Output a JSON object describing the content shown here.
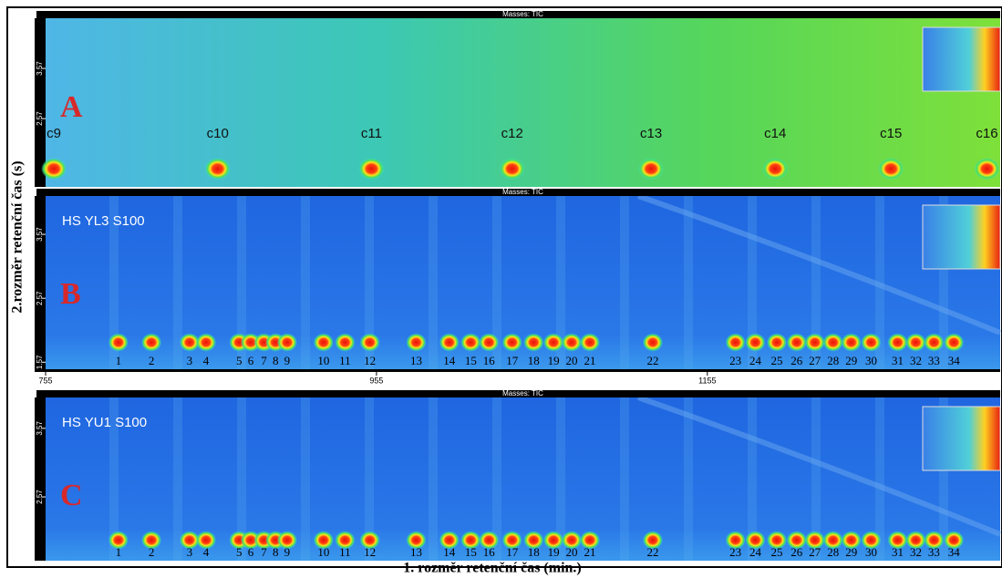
{
  "axes": {
    "x_label": "1. rozměr retenční čas (min.)",
    "y_label": "2.rozměr retenční čas (s)",
    "xlim": [
      755,
      1332
    ],
    "xticks": [
      755,
      955,
      1155
    ]
  },
  "panels": [
    {
      "title": "Masses: TIC",
      "letter": "A",
      "ylim": [
        1.21,
        4.57
      ],
      "yticks": [
        2.57,
        3.57
      ],
      "peak_rt2": 1.57,
      "peaks": [
        {
          "label": "c9",
          "rt1": 760
        },
        {
          "label": "c10",
          "rt1": 859
        },
        {
          "label": "c11",
          "rt1": 952
        },
        {
          "label": "c12",
          "rt1": 1037
        },
        {
          "label": "c13",
          "rt1": 1121
        },
        {
          "label": "c14",
          "rt1": 1196
        },
        {
          "label": "c15",
          "rt1": 1266
        },
        {
          "label": "c16",
          "rt1": 1324
        }
      ]
    },
    {
      "title": "Masses: TIC",
      "letter": "B",
      "sample": "HS YL3 S100",
      "ylim": [
        1.46,
        4.17
      ],
      "yticks": [
        1.57,
        2.57,
        3.57
      ],
      "peak_rt2": 1.88,
      "peaks": [
        {
          "label": "1",
          "rt1": 799
        },
        {
          "label": "2",
          "rt1": 819
        },
        {
          "label": "3",
          "rt1": 842
        },
        {
          "label": "4",
          "rt1": 852
        },
        {
          "label": "5",
          "rt1": 872
        },
        {
          "label": "6",
          "rt1": 879
        },
        {
          "label": "7",
          "rt1": 887
        },
        {
          "label": "8",
          "rt1": 894
        },
        {
          "label": "9",
          "rt1": 901
        },
        {
          "label": "10",
          "rt1": 923
        },
        {
          "label": "11",
          "rt1": 936
        },
        {
          "label": "12",
          "rt1": 951
        },
        {
          "label": "13",
          "rt1": 979
        },
        {
          "label": "14",
          "rt1": 999
        },
        {
          "label": "15",
          "rt1": 1012
        },
        {
          "label": "16",
          "rt1": 1023
        },
        {
          "label": "17",
          "rt1": 1037
        },
        {
          "label": "18",
          "rt1": 1050
        },
        {
          "label": "19",
          "rt1": 1062
        },
        {
          "label": "20",
          "rt1": 1073
        },
        {
          "label": "21",
          "rt1": 1084
        },
        {
          "label": "22",
          "rt1": 1122
        },
        {
          "label": "23",
          "rt1": 1172
        },
        {
          "label": "24",
          "rt1": 1184
        },
        {
          "label": "25",
          "rt1": 1197
        },
        {
          "label": "26",
          "rt1": 1209
        },
        {
          "label": "27",
          "rt1": 1220
        },
        {
          "label": "28",
          "rt1": 1231
        },
        {
          "label": "29",
          "rt1": 1242
        },
        {
          "label": "30",
          "rt1": 1254
        },
        {
          "label": "31",
          "rt1": 1270
        },
        {
          "label": "32",
          "rt1": 1281
        },
        {
          "label": "33",
          "rt1": 1292
        },
        {
          "label": "34",
          "rt1": 1304
        }
      ]
    },
    {
      "title": "Masses: TIC",
      "letter": "C",
      "sample": "HS YU1 S100",
      "ylim": [
        1.64,
        4.02
      ],
      "yticks": [
        2.57,
        3.57
      ],
      "peak_rt2": 1.94,
      "peaks": [
        {
          "label": "1",
          "rt1": 799
        },
        {
          "label": "2",
          "rt1": 819
        },
        {
          "label": "3",
          "rt1": 842
        },
        {
          "label": "4",
          "rt1": 852
        },
        {
          "label": "5",
          "rt1": 872
        },
        {
          "label": "6",
          "rt1": 879
        },
        {
          "label": "7",
          "rt1": 887
        },
        {
          "label": "8",
          "rt1": 894
        },
        {
          "label": "9",
          "rt1": 901
        },
        {
          "label": "10",
          "rt1": 923
        },
        {
          "label": "11",
          "rt1": 936
        },
        {
          "label": "12",
          "rt1": 951
        },
        {
          "label": "13",
          "rt1": 979
        },
        {
          "label": "14",
          "rt1": 999
        },
        {
          "label": "15",
          "rt1": 1012
        },
        {
          "label": "16",
          "rt1": 1023
        },
        {
          "label": "17",
          "rt1": 1037
        },
        {
          "label": "18",
          "rt1": 1050
        },
        {
          "label": "19",
          "rt1": 1062
        },
        {
          "label": "20",
          "rt1": 1073
        },
        {
          "label": "21",
          "rt1": 1084
        },
        {
          "label": "22",
          "rt1": 1122
        },
        {
          "label": "23",
          "rt1": 1172
        },
        {
          "label": "24",
          "rt1": 1184
        },
        {
          "label": "25",
          "rt1": 1197
        },
        {
          "label": "26",
          "rt1": 1209
        },
        {
          "label": "27",
          "rt1": 1220
        },
        {
          "label": "28",
          "rt1": 1231
        },
        {
          "label": "29",
          "rt1": 1242
        },
        {
          "label": "30",
          "rt1": 1254
        },
        {
          "label": "31",
          "rt1": 1270
        },
        {
          "label": "32",
          "rt1": 1281
        },
        {
          "label": "33",
          "rt1": 1292
        },
        {
          "label": "34",
          "rt1": 1304
        }
      ]
    }
  ]
}
